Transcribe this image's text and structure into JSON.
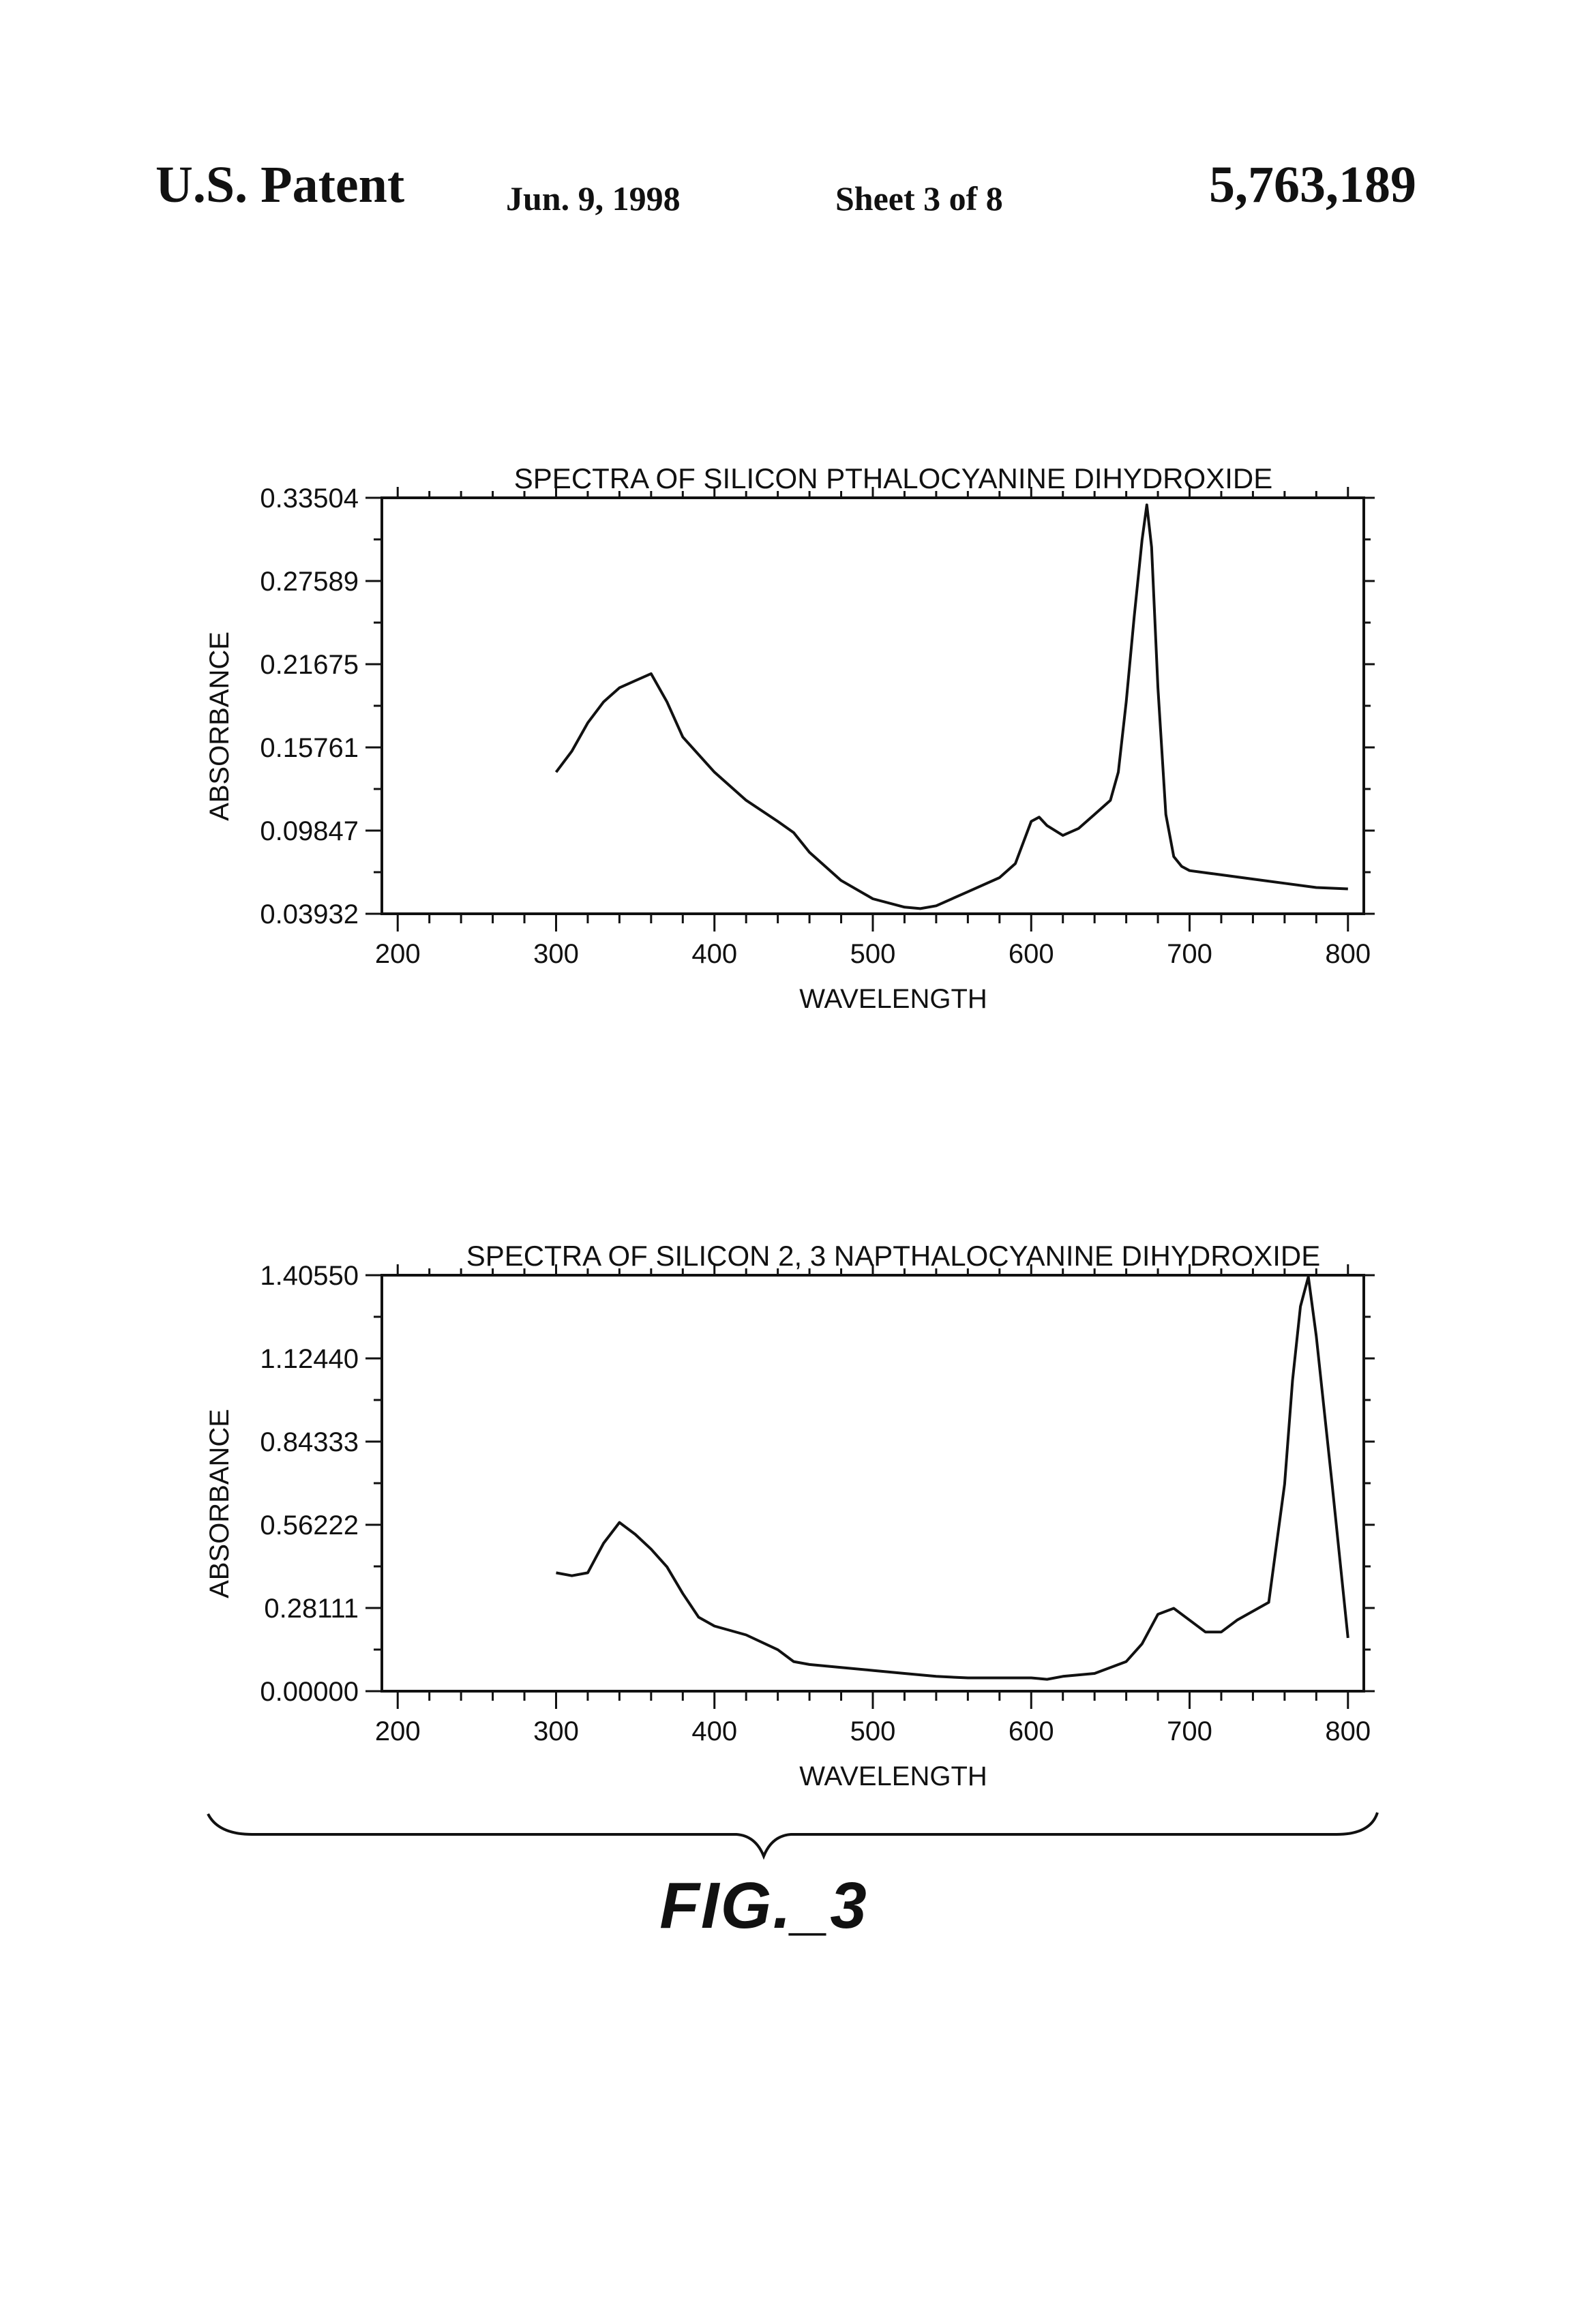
{
  "header": {
    "left": "U.S. Patent",
    "date": "Jun. 9, 1998",
    "sheet": "Sheet 3 of 8",
    "number": "5,763,189"
  },
  "figure_label": "FIG._3",
  "chart_data": [
    {
      "type": "line",
      "title": "SPECTRA OF SILICON PTHALOCYANINE DIHYDROXIDE",
      "xlabel": "WAVELENGTH",
      "ylabel": "ABSORBANCE",
      "xlim": [
        190,
        810
      ],
      "ylim": [
        0.03932,
        0.33504
      ],
      "xticks": [
        200,
        300,
        400,
        500,
        600,
        700,
        800
      ],
      "yticks": [
        "0.03932",
        "0.09847",
        "0.15761",
        "0.21675",
        "0.27589",
        "0.33504"
      ],
      "grid": false,
      "series": [
        {
          "x": [
            300,
            310,
            320,
            330,
            340,
            350,
            360,
            370,
            380,
            400,
            420,
            440,
            450,
            460,
            480,
            500,
            520,
            530,
            540,
            560,
            580,
            590,
            600,
            605,
            610,
            620,
            630,
            640,
            650,
            655,
            660,
            665,
            670,
            673,
            676,
            680,
            685,
            690,
            695,
            700,
            720,
            740,
            760,
            780,
            800
          ],
          "y": [
            0.14,
            0.155,
            0.175,
            0.19,
            0.2,
            0.205,
            0.21,
            0.19,
            0.165,
            0.14,
            0.12,
            0.105,
            0.097,
            0.083,
            0.063,
            0.05,
            0.044,
            0.043,
            0.045,
            0.055,
            0.065,
            0.075,
            0.105,
            0.108,
            0.102,
            0.095,
            0.1,
            0.11,
            0.12,
            0.14,
            0.19,
            0.25,
            0.305,
            0.33,
            0.3,
            0.2,
            0.11,
            0.08,
            0.073,
            0.07,
            0.067,
            0.064,
            0.061,
            0.058,
            0.057
          ]
        }
      ]
    },
    {
      "type": "line",
      "title": "SPECTRA OF SILICON 2, 3 NAPTHALOCYANINE DIHYDROXIDE",
      "xlabel": "WAVELENGTH",
      "ylabel": "ABSORBANCE",
      "xlim": [
        190,
        810
      ],
      "ylim": [
        0.0,
        1.4055
      ],
      "xticks": [
        200,
        300,
        400,
        500,
        600,
        700,
        800
      ],
      "yticks": [
        "0.00000",
        "0.28111",
        "0.56222",
        "0.84333",
        "1.12440",
        "1.40550"
      ],
      "grid": false,
      "series": [
        {
          "x": [
            300,
            310,
            320,
            325,
            330,
            340,
            350,
            360,
            370,
            380,
            390,
            400,
            420,
            440,
            450,
            460,
            480,
            500,
            520,
            540,
            560,
            580,
            600,
            610,
            620,
            640,
            660,
            670,
            680,
            690,
            700,
            710,
            720,
            730,
            740,
            750,
            760,
            765,
            770,
            775,
            780,
            790,
            800
          ],
          "y": [
            0.4,
            0.39,
            0.4,
            0.45,
            0.5,
            0.57,
            0.53,
            0.48,
            0.42,
            0.33,
            0.25,
            0.22,
            0.19,
            0.14,
            0.1,
            0.09,
            0.08,
            0.07,
            0.06,
            0.05,
            0.045,
            0.045,
            0.045,
            0.04,
            0.05,
            0.06,
            0.1,
            0.16,
            0.26,
            0.28,
            0.24,
            0.2,
            0.2,
            0.24,
            0.27,
            0.3,
            0.7,
            1.05,
            1.3,
            1.4,
            1.2,
            0.7,
            0.18
          ]
        }
      ]
    }
  ]
}
